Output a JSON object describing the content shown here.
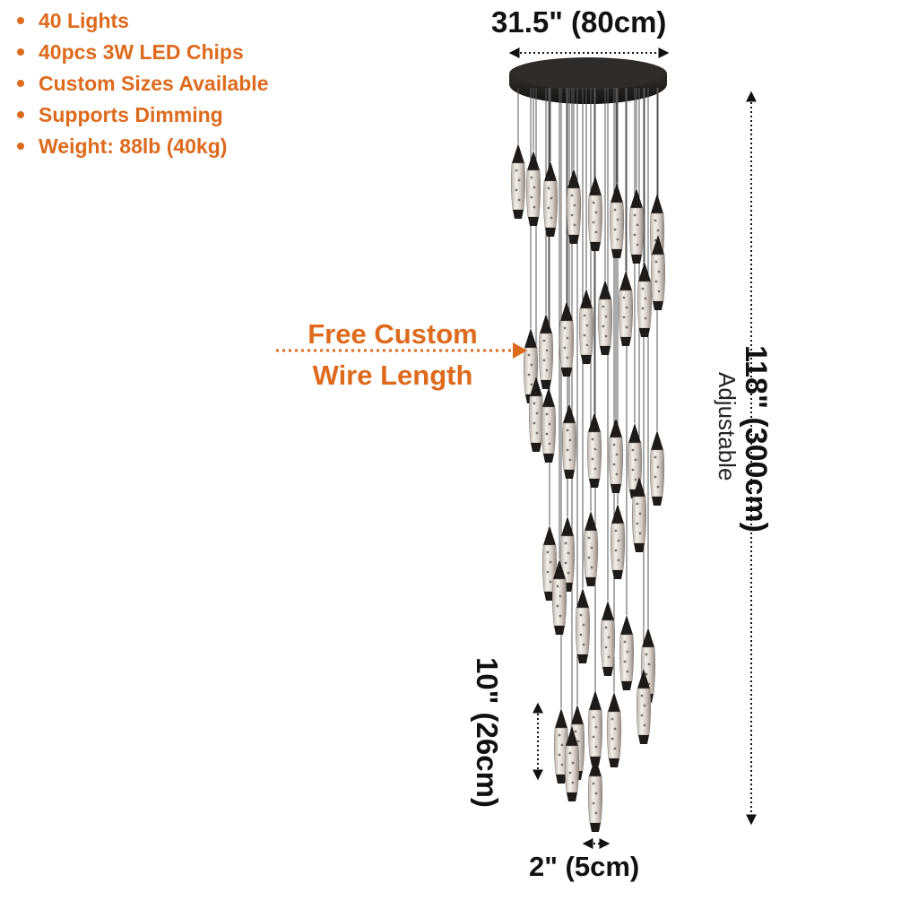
{
  "features": [
    "40 Lights",
    "40pcs 3W LED Chips",
    "Custom Sizes Available",
    "Supports Dimming",
    "Weight: 88lb (40kg)"
  ],
  "dimensions": {
    "canopy_width": "31.5\" (80cm)",
    "max_height": "118\" (300cm)",
    "height_note": "Adjustable",
    "pendant_length": "10\" (26cm)",
    "pendant_diameter": "2\" (5cm)"
  },
  "callout": {
    "line1": "Free Custom",
    "line2": "Wire Length"
  },
  "colors": {
    "accent": "#de6a1c",
    "text": "#111111",
    "metal": "#1e1b19",
    "crystal": "#d9d2cb"
  },
  "pendant_count": 40
}
